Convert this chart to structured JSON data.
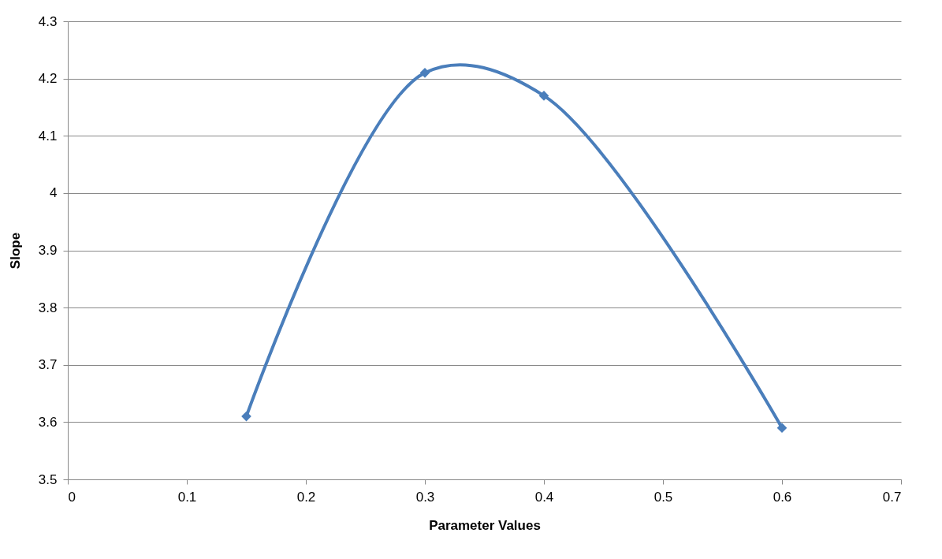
{
  "chart_data": {
    "type": "line",
    "xlabel": "Parameter Values",
    "ylabel": "Slope",
    "x": [
      0.15,
      0.3,
      0.4,
      0.6
    ],
    "series": [
      {
        "color": "#4a7ebb",
        "values": [
          3.61,
          4.21,
          4.17,
          3.59
        ]
      }
    ],
    "xlim": [
      0,
      0.7
    ],
    "xticks": [
      0,
      0.1,
      0.2,
      0.3,
      0.4,
      0.5,
      0.6,
      0.7
    ],
    "ylim": [
      3.5,
      4.3
    ],
    "yticks": [
      3.5,
      3.6,
      3.7,
      3.8,
      3.9,
      4,
      4.1,
      4.2,
      4.3
    ],
    "grid": "y",
    "legend": false,
    "marker": "diamond",
    "line_style": "solid"
  }
}
